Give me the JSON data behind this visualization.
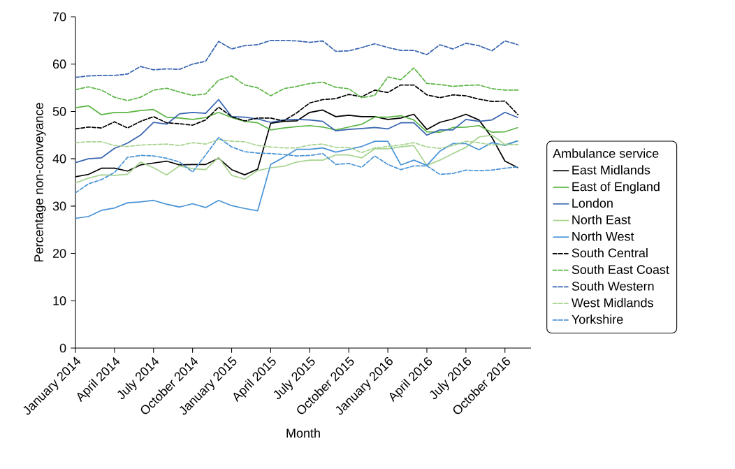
{
  "chart_data": {
    "type": "line",
    "xlabel": "Month",
    "ylabel": "Percentage non-conveyance",
    "legend_title": "Ambulance service",
    "legend": "right",
    "marker": "none",
    "grid": false,
    "x": [
      "2014-01",
      "2014-02",
      "2014-03",
      "2014-04",
      "2014-05",
      "2014-06",
      "2014-07",
      "2014-08",
      "2014-09",
      "2014-10",
      "2014-11",
      "2014-12",
      "2015-01",
      "2015-02",
      "2015-03",
      "2015-04",
      "2015-05",
      "2015-06",
      "2015-07",
      "2015-08",
      "2015-09",
      "2015-10",
      "2015-11",
      "2015-12",
      "2016-01",
      "2016-02",
      "2016-03",
      "2016-04",
      "2016-05",
      "2016-06",
      "2016-07",
      "2016-08",
      "2016-09",
      "2016-10",
      "2016-11"
    ],
    "xlim": [
      "2014-01",
      "2016-12"
    ],
    "xticks": [
      {
        "value": "2014-01",
        "label": "January 2014"
      },
      {
        "value": "2014-04",
        "label": "April 2014"
      },
      {
        "value": "2014-07",
        "label": "July 2014"
      },
      {
        "value": "2014-10",
        "label": "October 2014"
      },
      {
        "value": "2015-01",
        "label": "January 2015"
      },
      {
        "value": "2015-04",
        "label": "April 2015"
      },
      {
        "value": "2015-07",
        "label": "July 2015"
      },
      {
        "value": "2015-10",
        "label": "October 2015"
      },
      {
        "value": "2016-01",
        "label": "January 2016"
      },
      {
        "value": "2016-04",
        "label": "April 2016"
      },
      {
        "value": "2016-07",
        "label": "July 2016"
      },
      {
        "value": "2016-10",
        "label": "October 2016"
      }
    ],
    "ylim": [
      0,
      70
    ],
    "yticks": [
      0,
      10,
      20,
      30,
      40,
      50,
      60,
      70
    ],
    "series": [
      {
        "name": "East Midlands",
        "color": "#000000",
        "line_style": "solid",
        "values": [
          36.2,
          36.7,
          38.0,
          38.0,
          37.4,
          38.7,
          39.1,
          39.5,
          38.7,
          38.8,
          38.8,
          40.1,
          37.7,
          36.6,
          37.8,
          47.5,
          47.9,
          48.0,
          49.8,
          50.3,
          48.9,
          49.2,
          48.9,
          48.9,
          48.3,
          48.6,
          49.4,
          46.2,
          47.7,
          48.4,
          49.4,
          48.2,
          44.5,
          39.5,
          38.1
        ]
      },
      {
        "name": "East of England",
        "color": "#5cb545",
        "line_style": "solid",
        "values": [
          50.8,
          51.2,
          49.3,
          49.8,
          49.8,
          50.2,
          50.4,
          48.8,
          48.6,
          48.3,
          48.7,
          49.8,
          48.7,
          47.9,
          47.6,
          46.1,
          46.5,
          46.8,
          47.0,
          46.7,
          46.1,
          46.7,
          47.3,
          48.8,
          48.8,
          49.1,
          48.2,
          45.7,
          45.6,
          46.6,
          46.7,
          47.0,
          45.6,
          45.7,
          46.6
        ]
      },
      {
        "name": "London",
        "color": "#3864b0",
        "line_style": "solid",
        "values": [
          39.2,
          40.0,
          40.2,
          42.2,
          43.3,
          45.0,
          47.7,
          47.3,
          49.5,
          49.8,
          49.6,
          52.5,
          48.9,
          48.8,
          48.4,
          47.7,
          48.2,
          48.3,
          48.2,
          47.9,
          45.9,
          46.2,
          46.4,
          46.6,
          46.3,
          47.6,
          47.6,
          45.0,
          46.1,
          46.1,
          48.3,
          47.9,
          48.2,
          49.8,
          48.7
        ]
      },
      {
        "name": "North East",
        "color": "#a8d490",
        "line_style": "solid",
        "values": [
          34.9,
          35.9,
          36.6,
          36.5,
          36.7,
          39.3,
          38.1,
          36.6,
          38.5,
          37.9,
          37.7,
          40.3,
          36.5,
          35.7,
          37.5,
          38.1,
          38.4,
          39.3,
          39.7,
          39.7,
          40.8,
          40.8,
          40.2,
          42.1,
          42.1,
          42.5,
          42.8,
          38.6,
          39.7,
          41.1,
          42.4,
          44.6,
          45.0,
          43.0,
          43.8
        ]
      },
      {
        "name": "North West",
        "color": "#4a94d6",
        "line_style": "solid",
        "values": [
          27.4,
          27.8,
          29.1,
          29.6,
          30.7,
          30.9,
          31.2,
          30.4,
          29.8,
          30.5,
          29.7,
          31.2,
          30.1,
          29.5,
          29.0,
          38.8,
          40.3,
          42.0,
          42.0,
          42.3,
          41.4,
          42.0,
          42.6,
          43.7,
          43.7,
          38.7,
          39.7,
          38.6,
          41.6,
          43.2,
          43.2,
          41.9,
          43.4,
          42.8,
          43.8
        ]
      },
      {
        "name": "South Central",
        "color": "#000000",
        "line_style": "dashed",
        "values": [
          46.3,
          46.7,
          46.5,
          47.8,
          46.5,
          47.9,
          48.9,
          47.6,
          47.4,
          47.1,
          48.2,
          50.9,
          48.9,
          48.0,
          48.6,
          48.6,
          48.0,
          49.7,
          51.8,
          52.5,
          52.7,
          53.6,
          53.1,
          54.5,
          54.0,
          55.6,
          55.6,
          53.5,
          52.9,
          53.5,
          53.3,
          52.6,
          52.1,
          52.2,
          49.3
        ]
      },
      {
        "name": "South East Coast",
        "color": "#5cb545",
        "line_style": "dashed",
        "values": [
          54.6,
          55.2,
          54.5,
          53.0,
          52.3,
          53.0,
          54.5,
          54.9,
          54.1,
          53.4,
          53.7,
          56.6,
          57.5,
          55.6,
          55.0,
          53.3,
          54.8,
          55.3,
          55.9,
          56.2,
          55.1,
          54.8,
          52.9,
          53.4,
          57.3,
          56.7,
          59.2,
          55.9,
          55.7,
          55.3,
          55.5,
          55.6,
          54.8,
          54.5,
          54.5
        ]
      },
      {
        "name": "South Western",
        "color": "#3864b0",
        "line_style": "dashed",
        "values": [
          57.2,
          57.5,
          57.6,
          57.6,
          57.9,
          59.5,
          58.8,
          59.0,
          58.9,
          60.0,
          60.6,
          64.8,
          63.2,
          63.9,
          64.1,
          65.0,
          65.0,
          64.9,
          64.6,
          64.9,
          62.7,
          62.8,
          63.5,
          64.3,
          63.5,
          62.9,
          62.9,
          62.0,
          64.1,
          63.2,
          64.4,
          63.9,
          62.8,
          64.9,
          64.1
        ]
      },
      {
        "name": "West Midlands",
        "color": "#a8d490",
        "line_style": "dashed",
        "values": [
          43.4,
          43.6,
          43.6,
          42.8,
          42.6,
          42.9,
          43.0,
          43.1,
          42.8,
          43.4,
          43.1,
          44.1,
          43.7,
          43.6,
          42.8,
          42.5,
          42.3,
          42.3,
          42.9,
          43.1,
          42.4,
          42.4,
          41.3,
          42.3,
          42.6,
          42.9,
          43.4,
          42.5,
          42.2,
          42.8,
          43.7,
          43.4,
          42.9,
          43.0,
          43.0
        ]
      },
      {
        "name": "Yorkshire",
        "color": "#4a94d6",
        "line_style": "dashed",
        "values": [
          32.8,
          34.7,
          35.6,
          37.1,
          40.3,
          40.7,
          40.6,
          40.1,
          39.3,
          37.2,
          40.8,
          44.5,
          42.5,
          41.5,
          41.2,
          41.1,
          40.9,
          40.6,
          40.7,
          41.1,
          38.8,
          39.0,
          38.2,
          40.6,
          38.8,
          37.7,
          38.5,
          38.5,
          36.7,
          36.9,
          37.6,
          37.5,
          37.6,
          38.0,
          38.3
        ]
      }
    ]
  }
}
